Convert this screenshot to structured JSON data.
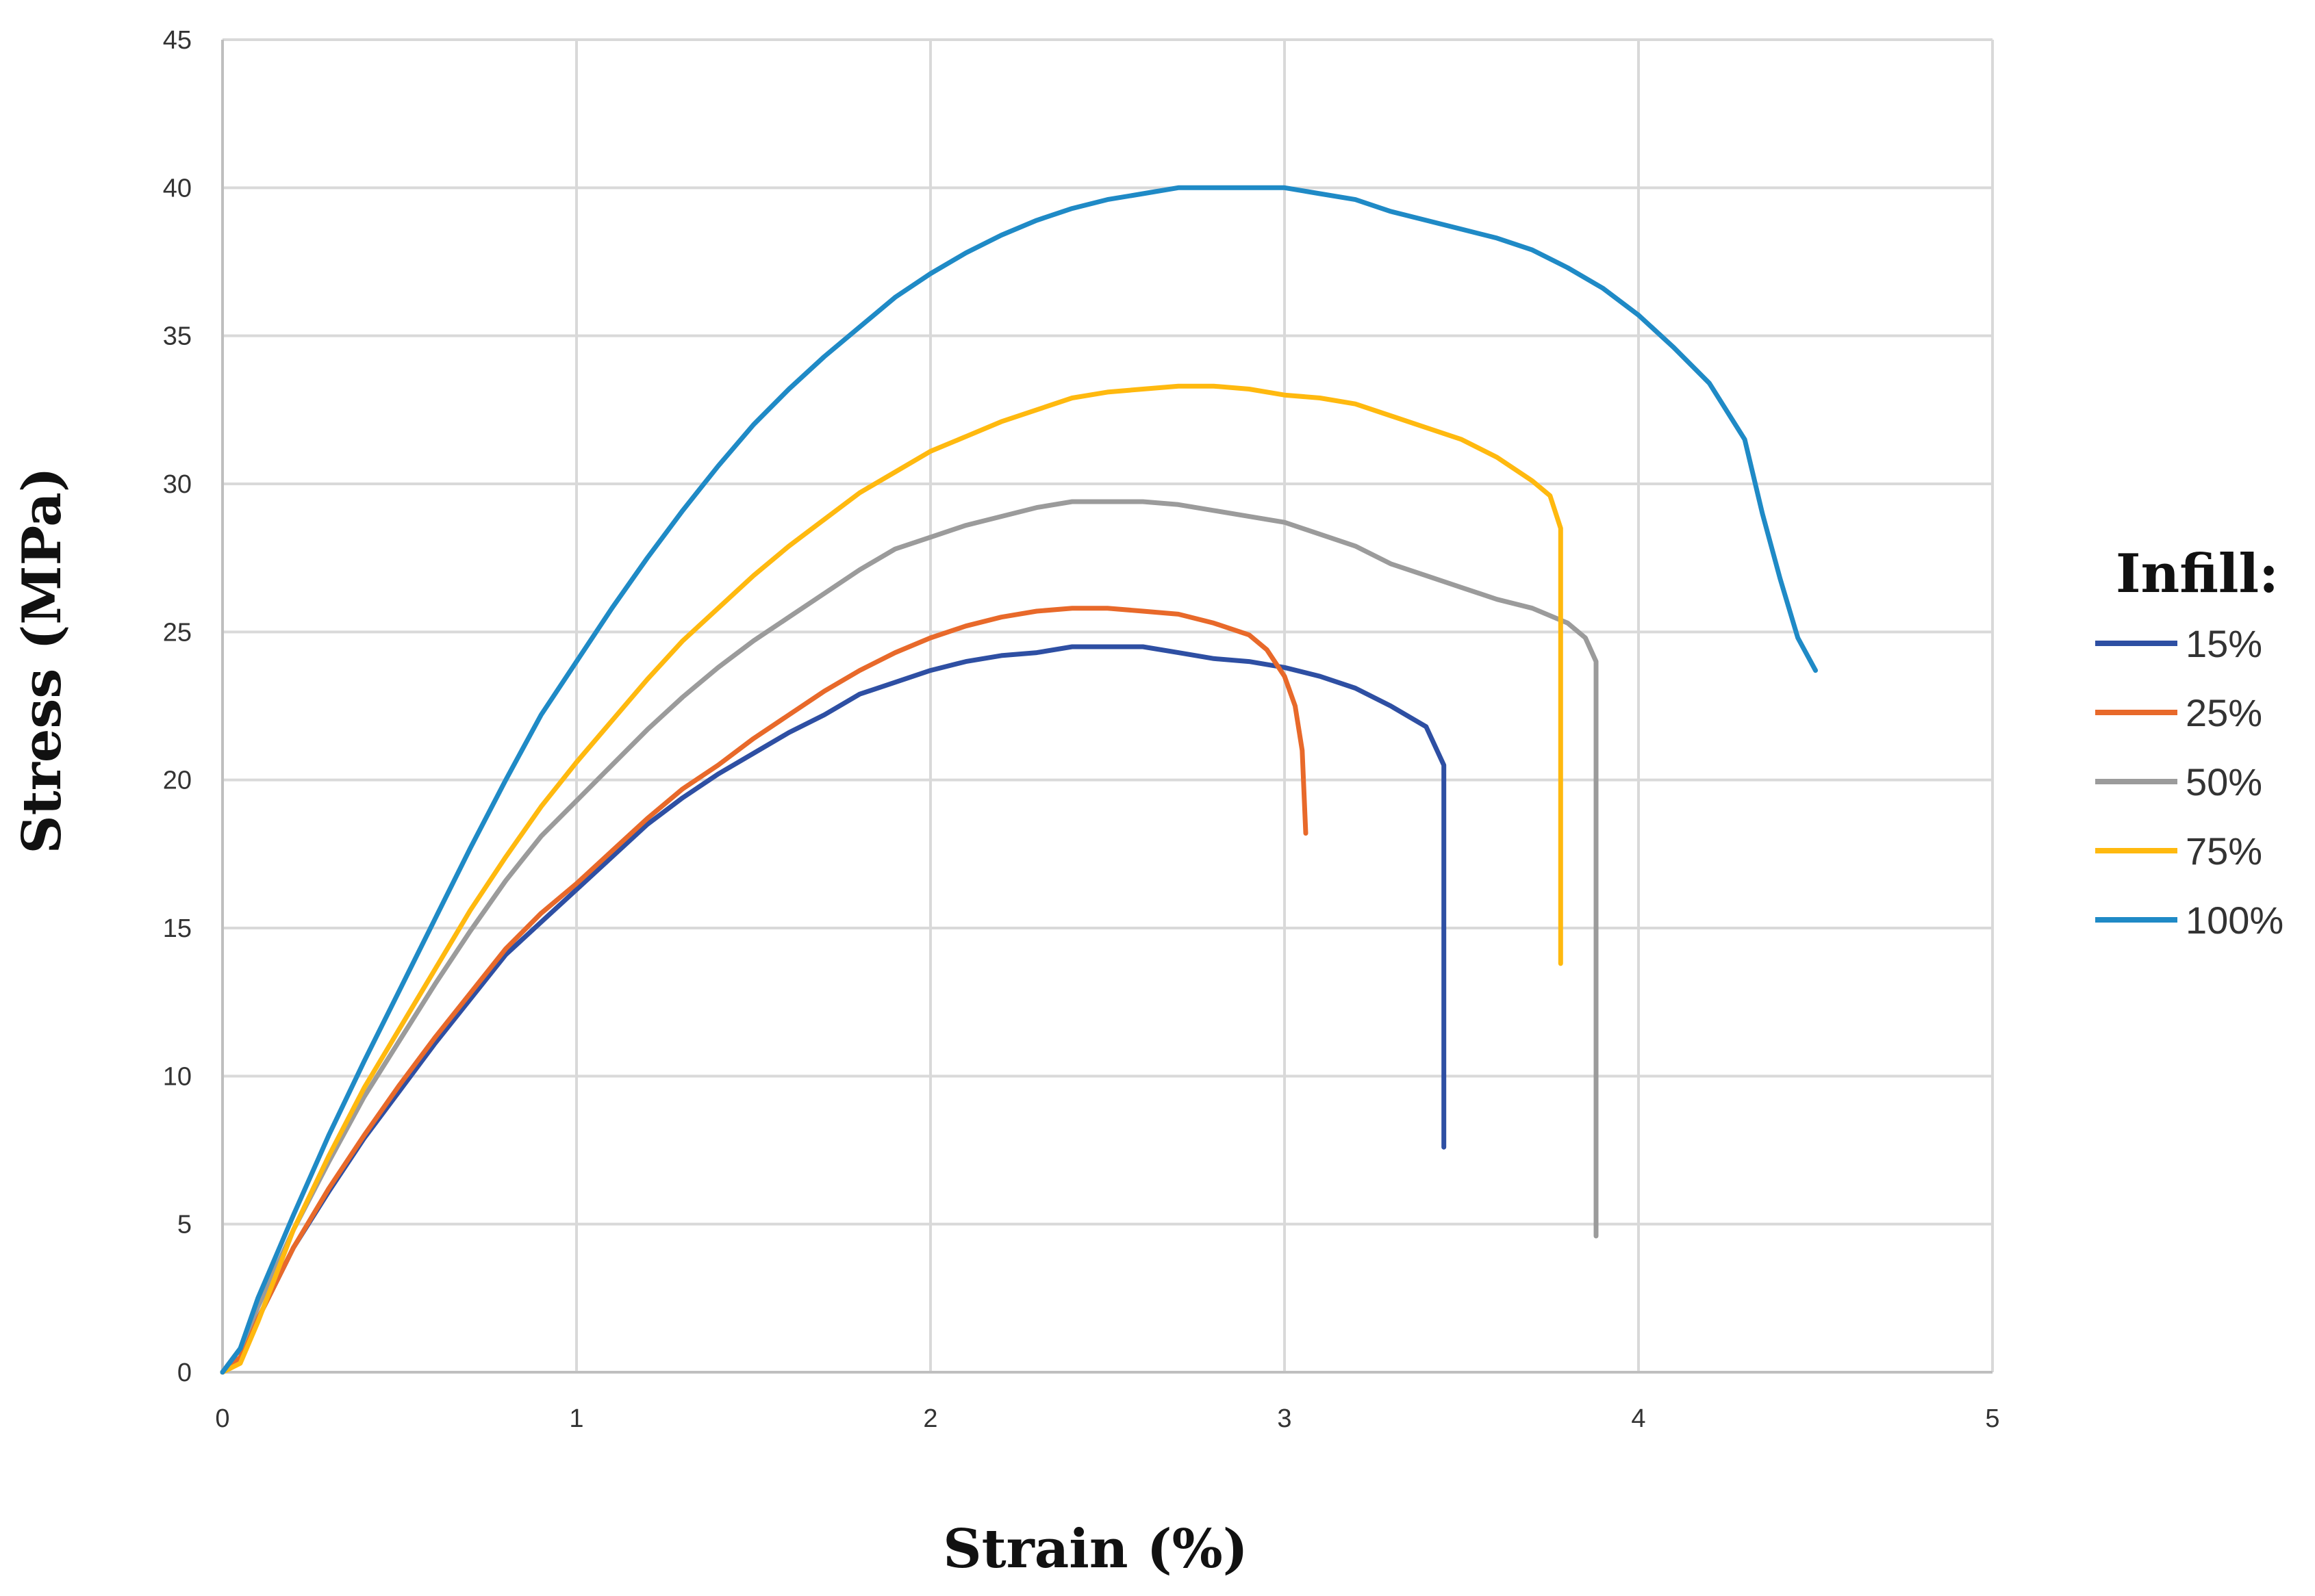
{
  "chart_data": {
    "type": "line",
    "title": "",
    "xlabel": "Strain (%)",
    "ylabel": "Stress (MPa)",
    "xlim": [
      0,
      5
    ],
    "ylim": [
      0,
      45
    ],
    "xticks": [
      "0",
      "1",
      "2",
      "3",
      "4",
      "5"
    ],
    "yticks": [
      "0",
      "5",
      "10",
      "15",
      "20",
      "25",
      "30",
      "35",
      "40",
      "45"
    ],
    "grid": true,
    "legend": {
      "title": "Infill:",
      "position": "right"
    },
    "series": [
      {
        "name": "15%",
        "color": "#2E4FA3",
        "x": [
          0,
          0.05,
          0.1,
          0.2,
          0.3,
          0.4,
          0.5,
          0.6,
          0.7,
          0.8,
          0.9,
          1.0,
          1.1,
          1.2,
          1.3,
          1.4,
          1.5,
          1.6,
          1.7,
          1.8,
          1.9,
          2.0,
          2.1,
          2.2,
          2.3,
          2.4,
          2.5,
          2.6,
          2.7,
          2.8,
          2.9,
          3.0,
          3.1,
          3.2,
          3.3,
          3.4,
          3.45,
          3.45,
          3.45
        ],
        "y": [
          0,
          0.5,
          1.8,
          4.2,
          6.1,
          7.9,
          9.5,
          11.1,
          12.6,
          14.1,
          15.2,
          16.3,
          17.4,
          18.5,
          19.4,
          20.2,
          20.9,
          21.6,
          22.2,
          22.9,
          23.3,
          23.7,
          24.0,
          24.2,
          24.3,
          24.5,
          24.5,
          24.5,
          24.3,
          24.1,
          24.0,
          23.8,
          23.5,
          23.1,
          22.5,
          21.8,
          20.5,
          12.0,
          7.6
        ]
      },
      {
        "name": "25%",
        "color": "#E8692A",
        "x": [
          0,
          0.05,
          0.1,
          0.2,
          0.3,
          0.4,
          0.5,
          0.6,
          0.7,
          0.8,
          0.9,
          1.0,
          1.1,
          1.2,
          1.3,
          1.4,
          1.5,
          1.6,
          1.7,
          1.8,
          1.9,
          2.0,
          2.1,
          2.2,
          2.3,
          2.4,
          2.5,
          2.6,
          2.7,
          2.8,
          2.9,
          2.95,
          3.0,
          3.03,
          3.05,
          3.06
        ],
        "y": [
          0,
          0.5,
          1.8,
          4.2,
          6.2,
          8.0,
          9.7,
          11.3,
          12.8,
          14.3,
          15.5,
          16.5,
          17.6,
          18.7,
          19.7,
          20.5,
          21.4,
          22.2,
          23.0,
          23.7,
          24.3,
          24.8,
          25.2,
          25.5,
          25.7,
          25.8,
          25.8,
          25.7,
          25.6,
          25.3,
          24.9,
          24.4,
          23.5,
          22.5,
          21.0,
          18.2
        ]
      },
      {
        "name": "50%",
        "color": "#9B9B9B",
        "x": [
          0,
          0.05,
          0.1,
          0.2,
          0.3,
          0.4,
          0.5,
          0.6,
          0.7,
          0.8,
          0.9,
          1.0,
          1.1,
          1.2,
          1.3,
          1.4,
          1.5,
          1.6,
          1.7,
          1.8,
          1.9,
          2.0,
          2.1,
          2.2,
          2.3,
          2.4,
          2.5,
          2.6,
          2.7,
          2.8,
          2.9,
          3.0,
          3.1,
          3.2,
          3.3,
          3.4,
          3.5,
          3.6,
          3.7,
          3.8,
          3.85,
          3.88,
          3.88,
          3.88
        ],
        "y": [
          0,
          0.8,
          2.2,
          4.8,
          7.1,
          9.3,
          11.2,
          13.1,
          14.9,
          16.6,
          18.1,
          19.3,
          20.5,
          21.7,
          22.8,
          23.8,
          24.7,
          25.5,
          26.3,
          27.1,
          27.8,
          28.2,
          28.6,
          28.9,
          29.2,
          29.4,
          29.4,
          29.4,
          29.3,
          29.1,
          28.9,
          28.7,
          28.3,
          27.9,
          27.3,
          26.9,
          26.5,
          26.1,
          25.8,
          25.3,
          24.8,
          24.0,
          15.0,
          4.6
        ]
      },
      {
        "name": "75%",
        "color": "#FFB90F",
        "x": [
          0,
          0.05,
          0.1,
          0.2,
          0.3,
          0.4,
          0.5,
          0.6,
          0.7,
          0.8,
          0.9,
          1.0,
          1.1,
          1.2,
          1.3,
          1.4,
          1.5,
          1.6,
          1.7,
          1.8,
          1.9,
          2.0,
          2.1,
          2.2,
          2.3,
          2.4,
          2.5,
          2.6,
          2.7,
          2.8,
          2.9,
          3.0,
          3.1,
          3.2,
          3.3,
          3.4,
          3.5,
          3.6,
          3.7,
          3.75,
          3.78,
          3.78,
          3.78
        ],
        "y": [
          0,
          0.3,
          1.7,
          4.8,
          7.3,
          9.6,
          11.6,
          13.6,
          15.6,
          17.4,
          19.1,
          20.6,
          22.0,
          23.4,
          24.7,
          25.8,
          26.9,
          27.9,
          28.8,
          29.7,
          30.4,
          31.1,
          31.6,
          32.1,
          32.5,
          32.9,
          33.1,
          33.2,
          33.3,
          33.3,
          33.2,
          33.0,
          32.9,
          32.7,
          32.3,
          31.9,
          31.5,
          30.9,
          30.1,
          29.6,
          28.5,
          20.0,
          13.8
        ]
      },
      {
        "name": "100%",
        "color": "#1F8AC6",
        "x": [
          0,
          0.05,
          0.1,
          0.2,
          0.3,
          0.4,
          0.5,
          0.6,
          0.7,
          0.8,
          0.9,
          1.0,
          1.1,
          1.2,
          1.3,
          1.4,
          1.5,
          1.6,
          1.7,
          1.8,
          1.9,
          2.0,
          2.1,
          2.2,
          2.3,
          2.4,
          2.5,
          2.6,
          2.7,
          2.8,
          2.9,
          3.0,
          3.1,
          3.2,
          3.3,
          3.4,
          3.5,
          3.6,
          3.7,
          3.8,
          3.9,
          4.0,
          4.1,
          4.2,
          4.3,
          4.35,
          4.4,
          4.45,
          4.5
        ],
        "y": [
          0,
          0.8,
          2.5,
          5.3,
          8.0,
          10.5,
          12.9,
          15.3,
          17.7,
          20.0,
          22.2,
          24.0,
          25.8,
          27.5,
          29.1,
          30.6,
          32.0,
          33.2,
          34.3,
          35.3,
          36.3,
          37.1,
          37.8,
          38.4,
          38.9,
          39.3,
          39.6,
          39.8,
          40.0,
          40.0,
          40.0,
          40.0,
          39.8,
          39.6,
          39.2,
          38.9,
          38.6,
          38.3,
          37.9,
          37.3,
          36.6,
          35.7,
          34.6,
          33.4,
          31.5,
          29.0,
          26.8,
          24.8,
          23.7
        ]
      }
    ]
  }
}
